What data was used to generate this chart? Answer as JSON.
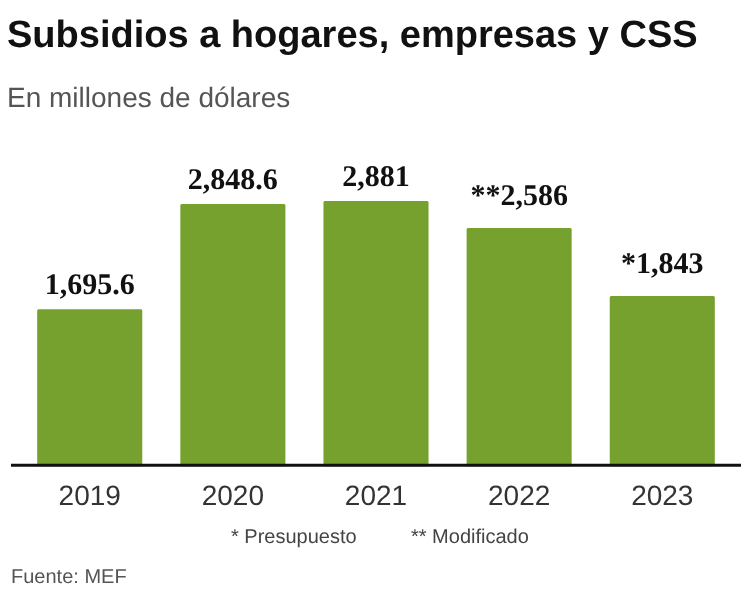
{
  "chart_data": {
    "type": "bar",
    "title": "Subsidios a hogares, empresas y CSS",
    "subtitle": "En millones de dólares",
    "categories": [
      "2019",
      "2020",
      "2021",
      "2022",
      "2023"
    ],
    "values": [
      1695.6,
      2848.6,
      2881,
      2586,
      1843
    ],
    "value_labels": [
      "1,695.6",
      "2,848.6",
      "2,881",
      "**2,586",
      "*1,843"
    ],
    "color": "#76a12f",
    "annotations": [
      "* Presupuesto",
      "** Modificado",
      "Fuente: MEF"
    ]
  }
}
